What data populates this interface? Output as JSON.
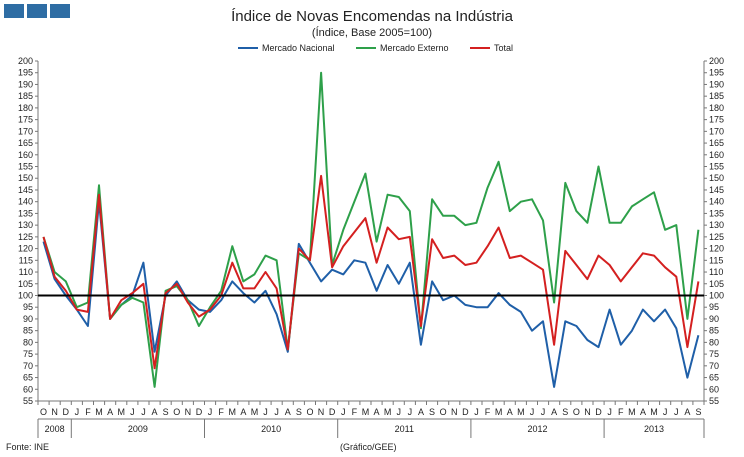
{
  "chart_data": {
    "type": "line",
    "title": "Índice de Novas Encomendas na Indústria",
    "subtitle": "(Índice, Base 2005=100)",
    "ylim": [
      55,
      200
    ],
    "ytick_step": 5,
    "reference_line": 100,
    "x": [
      "O",
      "N",
      "D",
      "J",
      "F",
      "M",
      "A",
      "M",
      "J",
      "J",
      "A",
      "S",
      "O",
      "N",
      "D",
      "J",
      "F",
      "M",
      "A",
      "M",
      "J",
      "J",
      "A",
      "S",
      "O",
      "N",
      "D",
      "J",
      "F",
      "M",
      "A",
      "M",
      "J",
      "J",
      "A",
      "S",
      "O",
      "N",
      "D",
      "J",
      "F",
      "M",
      "A",
      "M",
      "J",
      "J",
      "A",
      "S",
      "O",
      "N",
      "D",
      "J",
      "F",
      "M",
      "A",
      "M",
      "J",
      "J",
      "A",
      "S"
    ],
    "years": [
      {
        "label": "2008",
        "start": 0,
        "end": 2
      },
      {
        "label": "2009",
        "start": 3,
        "end": 14
      },
      {
        "label": "2010",
        "start": 15,
        "end": 26
      },
      {
        "label": "2011",
        "start": 27,
        "end": 38
      },
      {
        "label": "2012",
        "start": 39,
        "end": 50
      },
      {
        "label": "2013",
        "start": 51,
        "end": 59
      }
    ],
    "series": [
      {
        "name": "Mercado Nacional",
        "color": "#1f5fa8",
        "values": [
          123,
          107,
          100,
          94,
          87,
          140,
          90,
          96,
          100,
          114,
          76,
          100,
          106,
          98,
          94,
          93,
          98,
          106,
          101,
          97,
          102,
          92,
          76,
          122,
          114,
          106,
          111,
          109,
          115,
          114,
          102,
          113,
          105,
          114,
          79,
          106,
          98,
          100,
          96,
          95,
          95,
          101,
          96,
          93,
          85,
          89,
          61,
          89,
          87,
          81,
          78,
          94,
          79,
          85,
          94,
          89,
          94,
          86,
          65,
          83
        ]
      },
      {
        "name": "Mercado Externo",
        "color": "#2ea04a",
        "values": [
          125,
          110,
          106,
          95,
          97,
          147,
          90,
          96,
          99,
          97,
          61,
          102,
          104,
          98,
          87,
          95,
          102,
          121,
          106,
          109,
          117,
          115,
          77,
          118,
          115,
          195,
          113,
          128,
          140,
          152,
          123,
          143,
          142,
          136,
          86,
          141,
          134,
          134,
          130,
          131,
          146,
          157,
          136,
          140,
          141,
          132,
          97,
          148,
          136,
          131,
          155,
          131,
          131,
          138,
          141,
          144,
          128,
          130,
          90,
          128
        ]
      },
      {
        "name": "Total",
        "color": "#d42020",
        "values": [
          125,
          108,
          102,
          94,
          93,
          143,
          90,
          98,
          101,
          105,
          69,
          101,
          105,
          97,
          91,
          94,
          100,
          114,
          103,
          103,
          110,
          103,
          77,
          120,
          115,
          151,
          112,
          121,
          127,
          133,
          114,
          129,
          124,
          125,
          87,
          124,
          116,
          117,
          113,
          114,
          121,
          129,
          116,
          117,
          114,
          111,
          79,
          119,
          113,
          107,
          117,
          113,
          106,
          112,
          118,
          117,
          112,
          108,
          78,
          106
        ]
      }
    ]
  },
  "footer": {
    "source": "Fonte: INE",
    "credit": "(Gráfico/GEE)"
  }
}
